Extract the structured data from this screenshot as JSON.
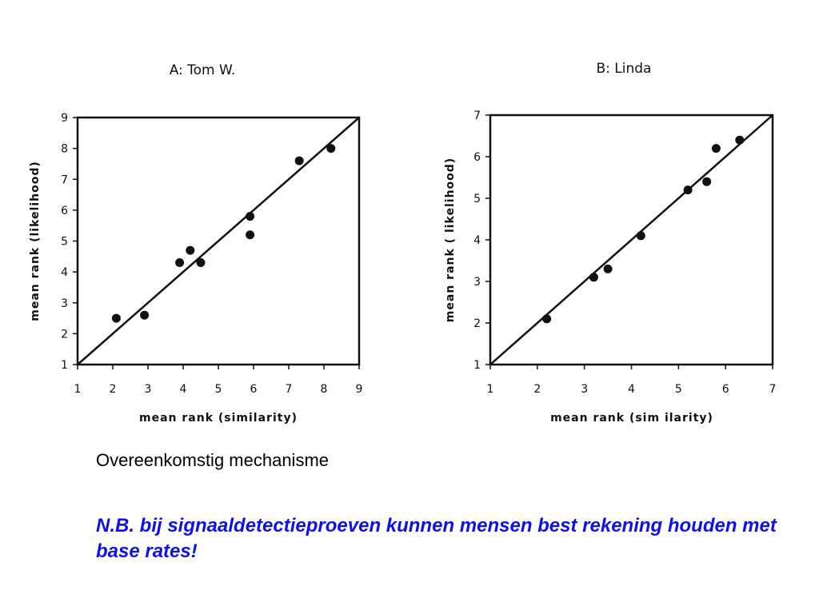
{
  "chart_data": [
    {
      "type": "scatter",
      "title": "A: Tom W.",
      "xlabel": "mean rank (similarity)",
      "ylabel": "mean rank (likelihood)",
      "xlim": [
        1,
        9
      ],
      "ylim": [
        1,
        9
      ],
      "xticks": [
        "1",
        "2",
        "3",
        "4",
        "5",
        "6",
        "7",
        "8",
        "9"
      ],
      "yticks": [
        "1",
        "2",
        "3",
        "4",
        "5",
        "6",
        "7",
        "8",
        "9"
      ],
      "identity_line": true,
      "points": [
        {
          "x": 2.1,
          "y": 2.5
        },
        {
          "x": 2.9,
          "y": 2.6
        },
        {
          "x": 3.9,
          "y": 4.3
        },
        {
          "x": 4.2,
          "y": 4.7
        },
        {
          "x": 4.5,
          "y": 4.3
        },
        {
          "x": 5.9,
          "y": 5.8
        },
        {
          "x": 5.9,
          "y": 5.2
        },
        {
          "x": 7.3,
          "y": 7.6
        },
        {
          "x": 8.2,
          "y": 8.0
        }
      ]
    },
    {
      "type": "scatter",
      "title": "B: Linda",
      "xlabel": "mean rank (sim ilarity)",
      "ylabel": "mean rank ( likelihood)",
      "xlim": [
        1,
        7
      ],
      "ylim": [
        1,
        7
      ],
      "xticks": [
        "1",
        "2",
        "3",
        "4",
        "5",
        "6",
        "7"
      ],
      "yticks": [
        "1",
        "2",
        "3",
        "4",
        "5",
        "6",
        "7"
      ],
      "identity_line": true,
      "points": [
        {
          "x": 2.2,
          "y": 2.1
        },
        {
          "x": 3.2,
          "y": 3.1
        },
        {
          "x": 3.5,
          "y": 3.3
        },
        {
          "x": 4.2,
          "y": 4.1
        },
        {
          "x": 5.2,
          "y": 5.2
        },
        {
          "x": 5.6,
          "y": 5.4
        },
        {
          "x": 5.8,
          "y": 6.2
        },
        {
          "x": 6.3,
          "y": 6.4
        }
      ]
    }
  ],
  "caption": "Overeenkomstig mechanisme",
  "note": "N.B. bij signaaldetectieproeven kunnen mensen best rekening houden met base rates!",
  "colors": {
    "note": "#1010e8",
    "marks": "#111111"
  }
}
